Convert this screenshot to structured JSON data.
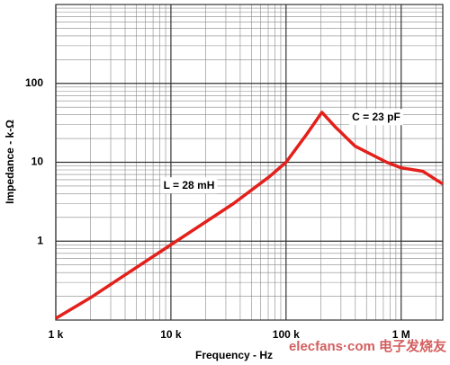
{
  "chart_data": {
    "type": "line",
    "x_label": "Frequency - Hz",
    "y_label": "Impedance - k-Ω",
    "x": [
      1000,
      1980,
      10000,
      35000,
      72000,
      100000,
      149000,
      205000,
      265000,
      398000,
      750000,
      1000000,
      1540000,
      2300000
    ],
    "values": [
      0.105,
      0.19,
      0.9,
      3.0,
      6.6,
      10,
      22,
      43,
      28.5,
      16,
      10,
      8.5,
      7.7,
      5.3
    ],
    "color": "#e3201b",
    "xlim": [
      1000,
      2300000
    ],
    "ylim": [
      0.1,
      1000
    ],
    "xticks": [
      {
        "value": 1000,
        "label": "1 k"
      },
      {
        "value": 10000,
        "label": "10 k"
      },
      {
        "value": 100000,
        "label": "100 k"
      },
      {
        "value": 1000000,
        "label": "1 M"
      }
    ],
    "yticks": [
      1,
      10,
      100
    ],
    "log_x": true,
    "log_y": true,
    "grid": true,
    "minor_grid": true,
    "annotations": [
      "L = 28 mH",
      "C = 23 pF"
    ],
    "watermark": "elecfans·com 电子发烧友"
  }
}
